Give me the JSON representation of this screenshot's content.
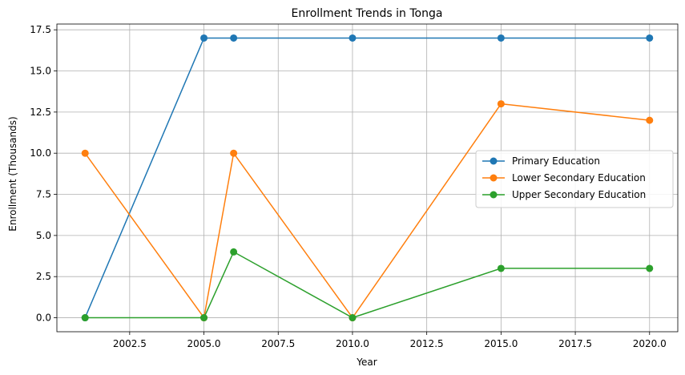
{
  "chart_data": {
    "type": "line",
    "title": "Enrollment Trends in Tonga",
    "xlabel": "Year",
    "ylabel": "Enrollment (Thousands)",
    "x": [
      2001,
      2005,
      2006,
      2010,
      2015,
      2020
    ],
    "xlim": [
      2000.05,
      2020.95
    ],
    "ylim": [
      -0.85,
      17.85
    ],
    "xticks": [
      2002.5,
      2005.0,
      2007.5,
      2010.0,
      2012.5,
      2015.0,
      2017.5,
      2020.0
    ],
    "xtick_labels": [
      "2002.5",
      "2005.0",
      "2007.5",
      "2010.0",
      "2012.5",
      "2015.0",
      "2017.5",
      "2020.0"
    ],
    "yticks": [
      0.0,
      2.5,
      5.0,
      7.5,
      10.0,
      12.5,
      15.0,
      17.5
    ],
    "ytick_labels": [
      "0.0",
      "2.5",
      "5.0",
      "7.5",
      "10.0",
      "12.5",
      "15.0",
      "17.5"
    ],
    "grid": true,
    "legend_position": "center-right",
    "series": [
      {
        "name": "Primary Education",
        "color": "#1f77b4",
        "values": [
          0,
          17,
          17,
          17,
          17,
          17
        ]
      },
      {
        "name": "Lower Secondary Education",
        "color": "#ff7f0e",
        "values": [
          10,
          0,
          10,
          0,
          13,
          12
        ]
      },
      {
        "name": "Upper Secondary Education",
        "color": "#2ca02c",
        "values": [
          0,
          0,
          4,
          0,
          3,
          3
        ]
      }
    ]
  }
}
